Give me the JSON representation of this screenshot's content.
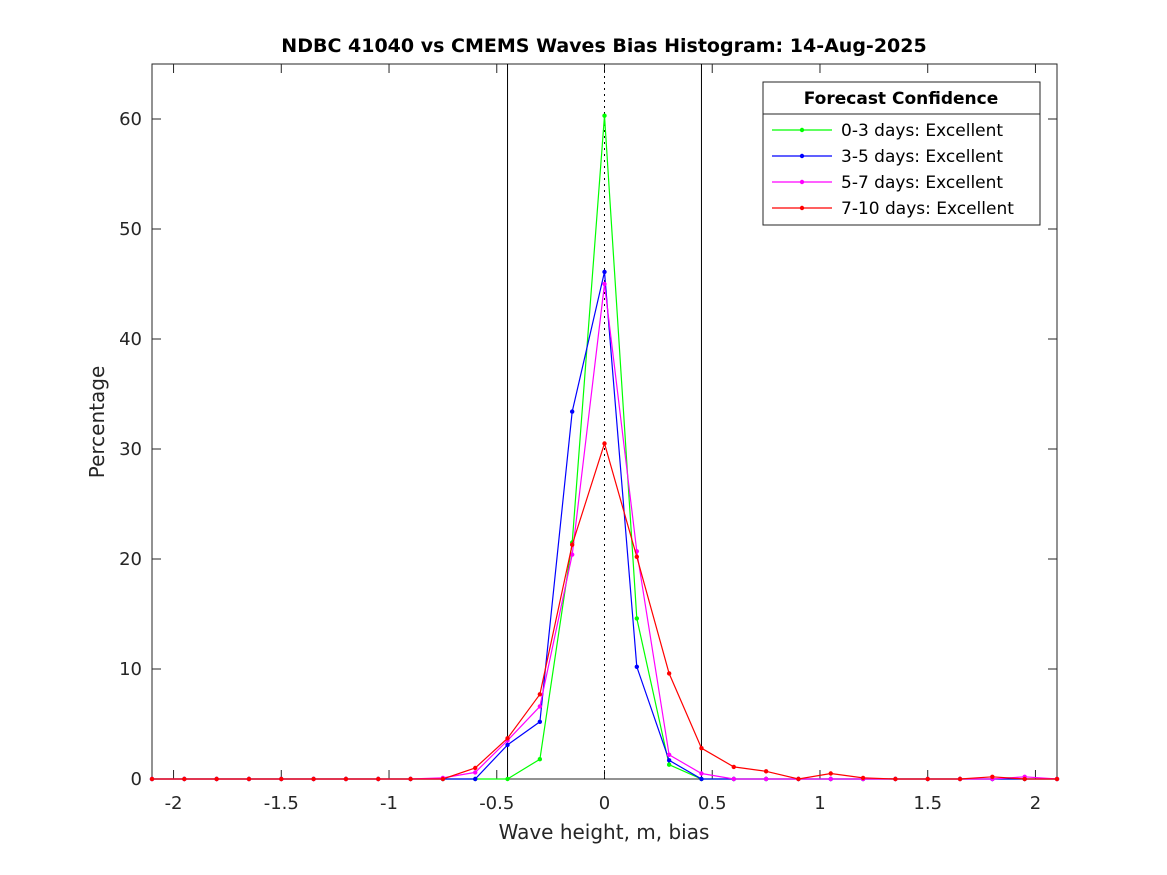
{
  "chart_data": {
    "type": "line",
    "title": "NDBC 41040 vs CMEMS Waves Bias Histogram: 14-Aug-2025",
    "xlabel": "Wave height, m, bias",
    "ylabel": "Percentage",
    "xlim": [
      -2.1,
      2.1
    ],
    "ylim": [
      0,
      65
    ],
    "xticks": [
      -2,
      -1.5,
      -1,
      -0.5,
      0,
      0.5,
      1,
      1.5,
      2
    ],
    "xtick_labels": [
      "-2",
      "-1.5",
      "-1",
      "-0.5",
      "0",
      "0.5",
      "1",
      "1.5",
      "2"
    ],
    "yticks": [
      0,
      10,
      20,
      30,
      40,
      50,
      60
    ],
    "ytick_labels": [
      "0",
      "10",
      "20",
      "30",
      "40",
      "50",
      "60"
    ],
    "grid": false,
    "reference_lines": {
      "solid_x": [
        -0.45,
        0.45
      ],
      "dotted_x": [
        0
      ]
    },
    "legend": {
      "title": "Forecast Confidence",
      "placement": "top-right",
      "entries": [
        "0-3 days: Excellent",
        "3-5 days: Excellent",
        "5-7 days: Excellent",
        "7-10 days: Excellent"
      ]
    },
    "x": [
      -2.1,
      -1.95,
      -1.8,
      -1.65,
      -1.5,
      -1.35,
      -1.2,
      -1.05,
      -0.9,
      -0.75,
      -0.6,
      -0.45,
      -0.3,
      -0.15,
      0,
      0.15,
      0.3,
      0.45,
      0.6,
      0.75,
      0.9,
      1.05,
      1.2,
      1.35,
      1.5,
      1.65,
      1.8,
      1.95,
      2.1
    ],
    "series": [
      {
        "name": "0-3 days: Excellent",
        "color": "#00ff00",
        "values": [
          0,
          0,
          0,
          0,
          0,
          0,
          0,
          0,
          0,
          0,
          0,
          0,
          1.8,
          21.5,
          60.3,
          14.6,
          1.3,
          0,
          0,
          0,
          0,
          0,
          0,
          0,
          0,
          0,
          0,
          0,
          0
        ]
      },
      {
        "name": "3-5 days: Excellent",
        "color": "#0000ff",
        "values": [
          0,
          0,
          0,
          0,
          0,
          0,
          0,
          0,
          0,
          0,
          0,
          3.1,
          5.2,
          33.4,
          46.1,
          10.2,
          1.7,
          0,
          0,
          0,
          0,
          0,
          0,
          0,
          0,
          0,
          0,
          0,
          0
        ]
      },
      {
        "name": "5-7 days: Excellent",
        "color": "#ff00ff",
        "values": [
          0,
          0,
          0,
          0,
          0,
          0,
          0,
          0,
          0,
          0.1,
          0.6,
          3.5,
          6.6,
          20.4,
          45.0,
          20.7,
          2.2,
          0.5,
          0,
          0,
          0,
          0,
          0,
          0,
          0,
          0,
          0,
          0.2,
          0
        ]
      },
      {
        "name": "7-10 days: Excellent",
        "color": "#ff0000",
        "values": [
          0,
          0,
          0,
          0,
          0,
          0,
          0,
          0,
          0,
          0,
          1.0,
          3.7,
          7.7,
          21.3,
          30.5,
          20.2,
          9.6,
          2.8,
          1.1,
          0.7,
          0,
          0.5,
          0.1,
          0,
          0,
          0,
          0.2,
          0,
          0
        ]
      }
    ]
  }
}
